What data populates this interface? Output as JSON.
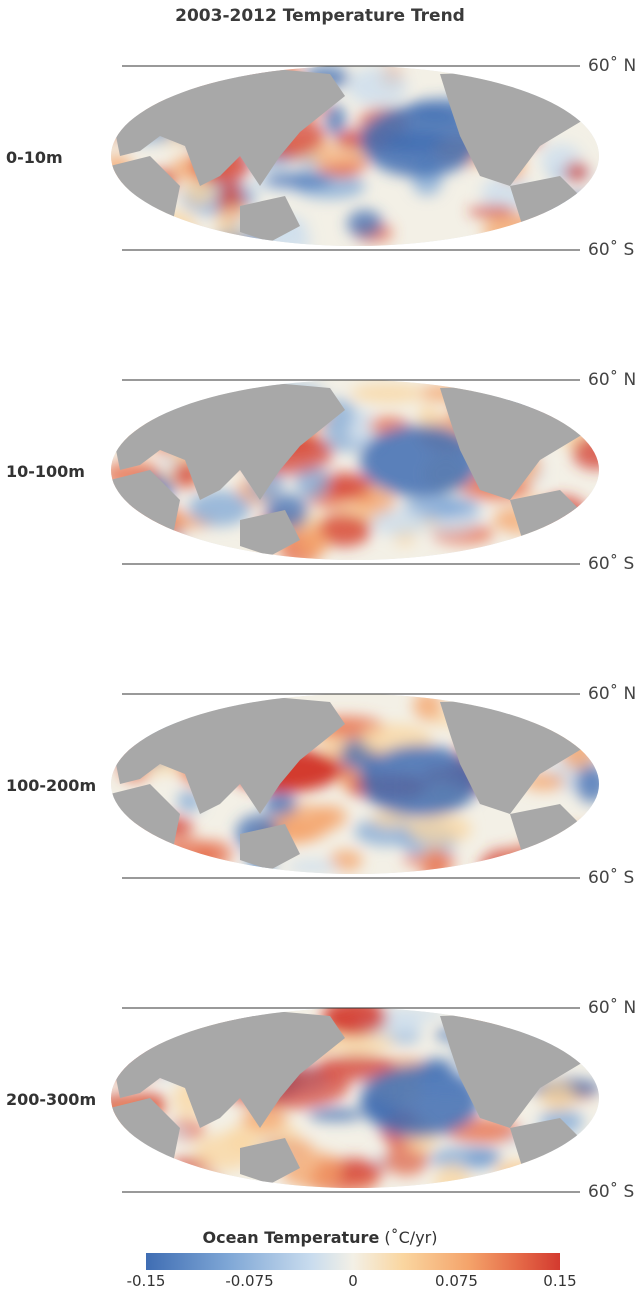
{
  "title": "2003-2012 Temperature Trend",
  "panels": [
    {
      "depth": "0-10m",
      "north_label": "60˚ N",
      "south_label": "60˚ S"
    },
    {
      "depth": "10-100m",
      "north_label": "60˚ N",
      "south_label": "60˚ S"
    },
    {
      "depth": "100-200m",
      "north_label": "60˚ N",
      "south_label": "60˚ S"
    },
    {
      "depth": "200-300m",
      "north_label": "60˚ N",
      "south_label": "60˚ S"
    }
  ],
  "legend": {
    "title": "Ocean Temperature",
    "units": "(˚C/yr)",
    "ticks": [
      "-0.15",
      "-0.075",
      "0",
      "0.075",
      "0.15"
    ],
    "range": [
      -0.15,
      0.15
    ],
    "colors": {
      "low": "#3f6db3",
      "mid": "#f3f0e6",
      "high": "#d33a2f",
      "land": "#a8a8a8",
      "polar": "#e8e8e8"
    }
  }
}
